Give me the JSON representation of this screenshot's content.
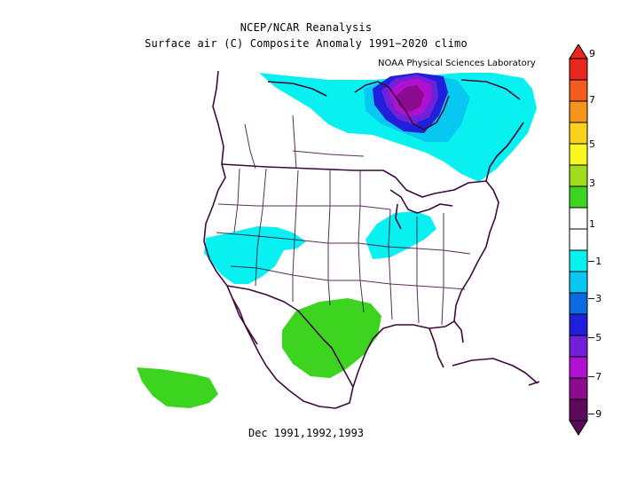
{
  "title": {
    "line1": "NCEP/NCAR Reanalysis",
    "line2": "Surface air (C) Composite Anomaly 1991−2020 climo"
  },
  "credit": "NOAA Physical Sciences Laboratory",
  "caption": "Dec 1991,1992,1993",
  "colorbar": {
    "tick_labels": [
      "9",
      "7",
      "5",
      "3",
      "1",
      "−1",
      "−3",
      "−5",
      "−7",
      "−9"
    ],
    "colors": [
      "#e8281f",
      "#f25a1e",
      "#f6951c",
      "#fcd21c",
      "#f7f71f",
      "#a2da1e",
      "#3cd41f",
      "#ffffff",
      "#ffffff",
      "#08f0f0",
      "#08c8f2",
      "#0a6ce0",
      "#2020dc",
      "#7020d8",
      "#b010d0",
      "#8c0c90",
      "#5c0a5c"
    ]
  },
  "anomaly_fill_colors": {
    "light_negative": "#08f0f0",
    "positive": "#3cd41f",
    "strong_negative": "#7020d8"
  }
}
